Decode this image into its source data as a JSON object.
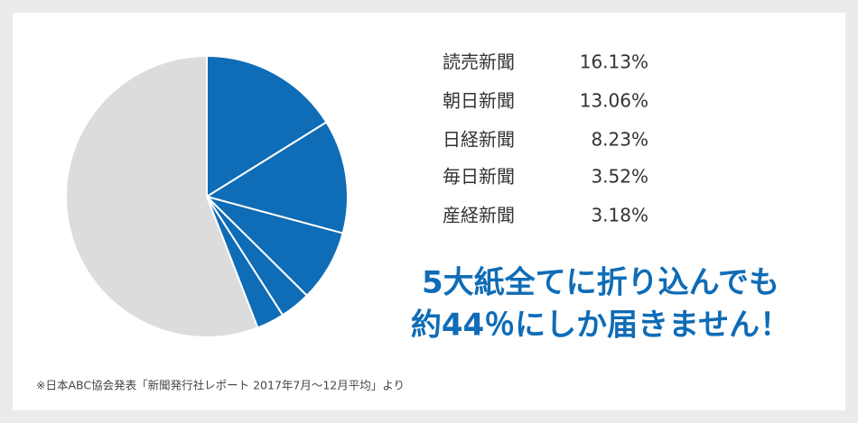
{
  "chart_data": {
    "type": "pie",
    "categories": [
      "読売新聞",
      "朝日新聞",
      "日経新聞",
      "毎日新聞",
      "産経新聞",
      null
    ],
    "values": [
      16.13,
      13.06,
      8.23,
      3.52,
      3.18,
      55.88
    ],
    "value_labels": [
      "16.13%",
      "13.06%",
      "8.23%",
      "3.52%",
      "3.18%",
      null
    ],
    "colors": [
      "#0f6cb6",
      "#0f6cb6",
      "#0f6cb6",
      "#0f6cb6",
      "#0f6cb6",
      "#dcdcdc"
    ],
    "annotation": [
      "5大紙全てに折り込んでも",
      "約44％にしか届きません！"
    ],
    "footnote": "※日本ABC協会発表「新聞発行社レポート 2017年7月～12月平均」より"
  }
}
